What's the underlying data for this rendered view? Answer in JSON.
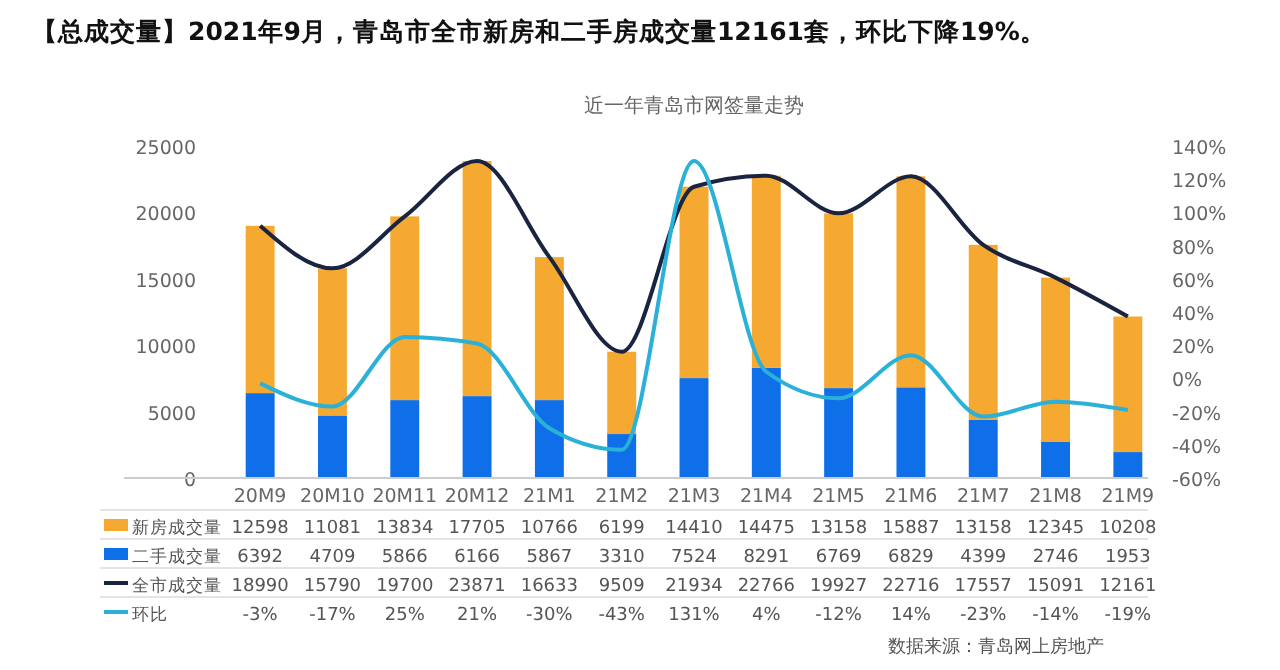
{
  "chart_data": {
    "type": "bar",
    "stacked": true,
    "title": "【总成交量】2021年9月，青岛市全市新房和二手房成交量12161套，环比下降19%。",
    "subtitle": "近一年青岛市网签量走势",
    "categories": [
      "20M9",
      "20M10",
      "20M11",
      "20M12",
      "21M1",
      "21M2",
      "21M3",
      "21M4",
      "21M5",
      "21M6",
      "21M7",
      "21M8",
      "21M9"
    ],
    "series": [
      {
        "name": "二手成交量",
        "color": "#0f6fe8",
        "values": [
          6392,
          4709,
          5866,
          6166,
          5867,
          3310,
          7524,
          8291,
          6769,
          6829,
          4399,
          2746,
          1953
        ]
      },
      {
        "name": "新房成交量",
        "color": "#f5a930",
        "values": [
          12598,
          11081,
          13834,
          17705,
          10766,
          6199,
          14410,
          14475,
          13158,
          15887,
          13158,
          12345,
          10208
        ]
      },
      {
        "name": "全市成交量",
        "type": "line",
        "color": "#1a2340",
        "values": [
          18990,
          15790,
          19700,
          23871,
          16633,
          9509,
          21934,
          22766,
          19927,
          22716,
          17557,
          15091,
          12161
        ]
      },
      {
        "name": "环比",
        "type": "line",
        "axis": "y2",
        "color": "#2bb0d8",
        "values": [
          -3,
          -17,
          25,
          21,
          -30,
          -43,
          131,
          4,
          -12,
          14,
          -23,
          -14,
          -19
        ],
        "value_labels": [
          "-3%",
          "-17%",
          "25%",
          "21%",
          "-30%",
          "-43%",
          "131%",
          "4%",
          "-12%",
          "14%",
          "-23%",
          "-14%",
          "-19%"
        ]
      }
    ],
    "ylim": [
      0,
      25000
    ],
    "yticks": [
      0,
      5000,
      10000,
      15000,
      20000,
      25000
    ],
    "y2lim": [
      -60,
      140
    ],
    "y2ticks": [
      {
        "value": -60,
        "label": "-60%"
      },
      {
        "value": -40,
        "label": "-40%"
      },
      {
        "value": -20,
        "label": "-20%"
      },
      {
        "value": 0,
        "label": "0%"
      },
      {
        "value": 20,
        "label": "20%"
      },
      {
        "value": 40,
        "label": "40%"
      },
      {
        "value": 60,
        "label": "60%"
      },
      {
        "value": 80,
        "label": "80%"
      },
      {
        "value": 100,
        "label": "100%"
      },
      {
        "value": 120,
        "label": "120%"
      },
      {
        "value": 140,
        "label": "140%"
      }
    ],
    "grid": false,
    "legend": "bottom",
    "data_labels": true,
    "annotations": [
      "数据来源：青岛网上房地产"
    ]
  }
}
